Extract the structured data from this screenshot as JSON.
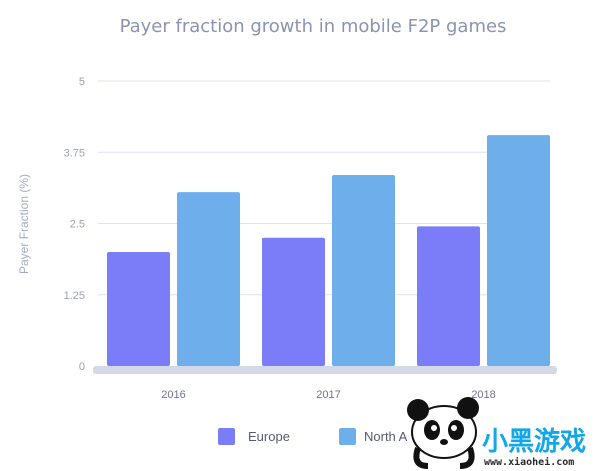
{
  "chart_data": {
    "type": "bar",
    "title": "Payer fraction growth in mobile F2P games",
    "xlabel": "",
    "ylabel": "Payer Fraction (%)",
    "categories": [
      "2016",
      "2017",
      "2018"
    ],
    "ylim": [
      0,
      5
    ],
    "yticks": [
      "0",
      "1.25",
      "2.5",
      "3.75",
      "5"
    ],
    "grid": true,
    "legend_position": "bottom",
    "series": [
      {
        "name": "Europe",
        "values": [
          2.0,
          2.25,
          2.45
        ],
        "color": "#7b7cf7"
      },
      {
        "name": "North America",
        "values": [
          3.05,
          3.35,
          4.05
        ],
        "color": "#6eaeea"
      }
    ]
  },
  "legend": {
    "items": [
      {
        "label": "Europe",
        "color": "#7b7cf7"
      },
      {
        "label": "North A",
        "color": "#6eaeea"
      }
    ]
  },
  "watermark": {
    "text": "小黑游戏",
    "url": "www.xiaohei.com"
  }
}
